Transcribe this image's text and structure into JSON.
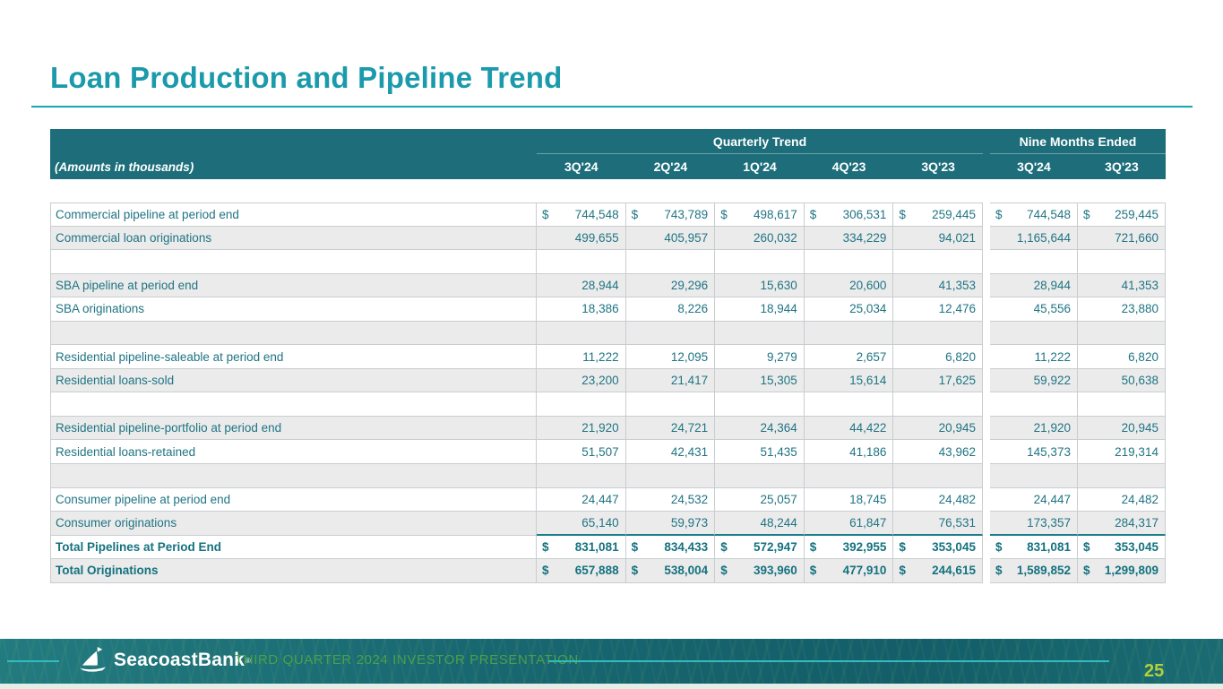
{
  "page": {
    "title": "Loan Production and Pipeline Trend",
    "page_number": "25"
  },
  "footer": {
    "brand": "SeacoastBank",
    "registered_mark": "®",
    "presentation_title": "THIRD QUARTER 2024 INVESTOR PRESENTATION"
  },
  "colors": {
    "title_teal": "#1A9AAB",
    "rule_teal": "#12A7B3",
    "table_header_bg": "#1D6E7A",
    "table_text_teal": "#1F7483",
    "total_text_teal": "#14727F",
    "alt_row_gray": "#EBEBEB",
    "grid_border": "#C8CDD0",
    "total_rule_teal": "#1A7D8A",
    "footer_bg_teal": "#19666E",
    "footer_line_teal": "#33BCBE",
    "footer_title_green": "#4BA04A",
    "page_number_green": "#B3CF3D"
  },
  "table": {
    "note": "(Amounts in thousands)",
    "group_headers": [
      {
        "label": "Quarterly Trend",
        "span": 5
      },
      {
        "label": "Nine Months Ended",
        "span": 2
      }
    ],
    "quarter_columns": [
      "3Q'24",
      "2Q'24",
      "1Q'24",
      "4Q'23",
      "3Q'23"
    ],
    "nine_month_columns": [
      "3Q'24",
      "3Q'23"
    ],
    "currency_symbol": "$",
    "rows": [
      {
        "label": "Commercial pipeline at period end",
        "dollar": true,
        "q": [
          "744,548",
          "743,789",
          "498,617",
          "306,531",
          "259,445"
        ],
        "nm": [
          "744,548",
          "259,445"
        ]
      },
      {
        "label": "Commercial loan originations",
        "q": [
          "499,655",
          "405,957",
          "260,032",
          "334,229",
          "94,021"
        ],
        "nm": [
          "1,165,644",
          "721,660"
        ]
      },
      {
        "spacer": true
      },
      {
        "label": "SBA pipeline at period end",
        "q": [
          "28,944",
          "29,296",
          "15,630",
          "20,600",
          "41,353"
        ],
        "nm": [
          "28,944",
          "41,353"
        ]
      },
      {
        "label": "SBA originations",
        "q": [
          "18,386",
          "8,226",
          "18,944",
          "25,034",
          "12,476"
        ],
        "nm": [
          "45,556",
          "23,880"
        ]
      },
      {
        "spacer": true
      },
      {
        "label": "Residential pipeline-saleable at period end",
        "q": [
          "11,222",
          "12,095",
          "9,279",
          "2,657",
          "6,820"
        ],
        "nm": [
          "11,222",
          "6,820"
        ]
      },
      {
        "label": "Residential loans-sold",
        "q": [
          "23,200",
          "21,417",
          "15,305",
          "15,614",
          "17,625"
        ],
        "nm": [
          "59,922",
          "50,638"
        ]
      },
      {
        "spacer": true
      },
      {
        "label": "Residential pipeline-portfolio at period end",
        "q": [
          "21,920",
          "24,721",
          "24,364",
          "44,422",
          "20,945"
        ],
        "nm": [
          "21,920",
          "20,945"
        ]
      },
      {
        "label": "Residential loans-retained",
        "q": [
          "51,507",
          "42,431",
          "51,435",
          "41,186",
          "43,962"
        ],
        "nm": [
          "145,373",
          "219,314"
        ]
      },
      {
        "spacer": true
      },
      {
        "label": "Consumer pipeline at period end",
        "q": [
          "24,447",
          "24,532",
          "25,057",
          "18,745",
          "24,482"
        ],
        "nm": [
          "24,447",
          "24,482"
        ]
      },
      {
        "label": "Consumer originations",
        "pre_total": true,
        "q": [
          "65,140",
          "59,973",
          "48,244",
          "61,847",
          "76,531"
        ],
        "nm": [
          "173,357",
          "284,317"
        ]
      },
      {
        "label": "Total Pipelines at Period End",
        "dollar": true,
        "bold": true,
        "q": [
          "831,081",
          "834,433",
          "572,947",
          "392,955",
          "353,045"
        ],
        "nm": [
          "831,081",
          "353,045"
        ]
      },
      {
        "label": "Total Originations",
        "dollar": true,
        "bold": true,
        "q": [
          "657,888",
          "538,004",
          "393,960",
          "477,910",
          "244,615"
        ],
        "nm": [
          "1,589,852",
          "1,299,809"
        ]
      }
    ]
  }
}
